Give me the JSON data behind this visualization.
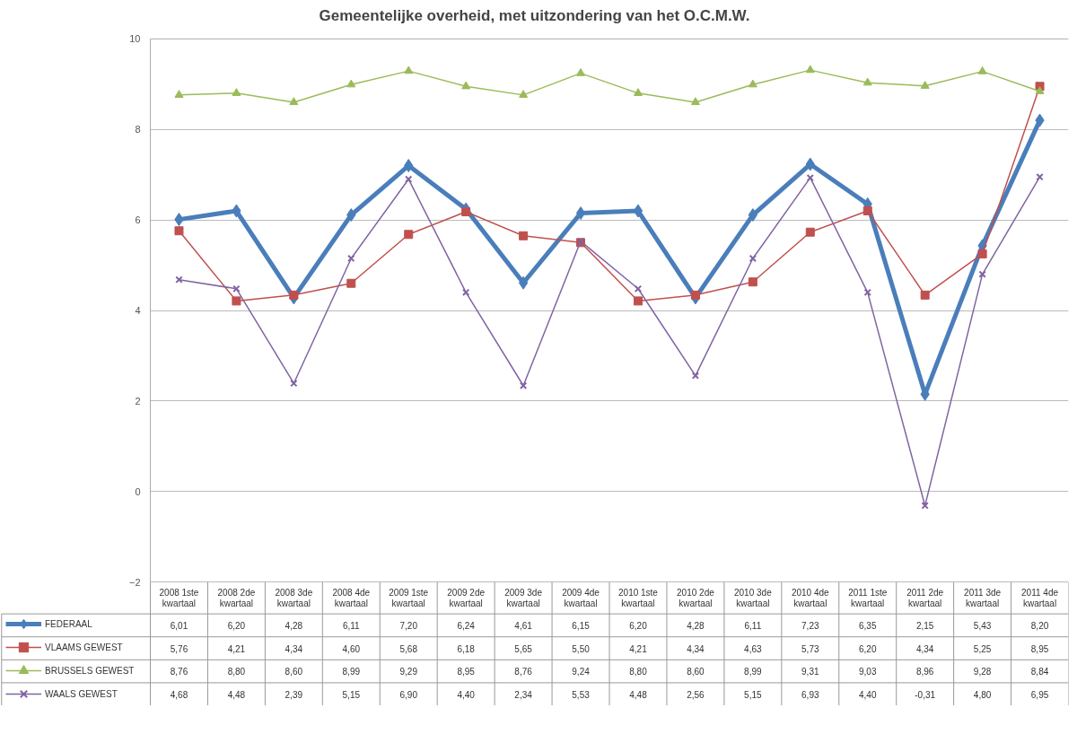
{
  "chart_data": {
    "type": "line",
    "title": "Gemeentelijke overheid, met uitzondering van het O.C.M.W.",
    "categories": [
      "2008 1ste kwartaal",
      "2008 2de kwartaal",
      "2008 3de kwartaal",
      "2008 4de kwartaal",
      "2009 1ste kwartaal",
      "2009 2de kwartaal",
      "2009 3de kwartaal",
      "2009 4de kwartaal",
      "2010 1ste kwartaal",
      "2010 2de kwartaal",
      "2010 3de kwartaal",
      "2010 4de kwartaal",
      "2011 1ste kwartaal",
      "2011 2de kwartaal",
      "2011 3de kwartaal",
      "2011 4de kwartaal"
    ],
    "series": [
      {
        "name": "FEDERAAL",
        "color": "#4a7ebb",
        "marker": "diamond",
        "values": [
          6.01,
          6.2,
          4.28,
          6.11,
          7.2,
          6.24,
          4.61,
          6.15,
          6.2,
          4.28,
          6.11,
          7.23,
          6.35,
          2.15,
          5.43,
          8.2
        ],
        "value_labels": [
          "6,01",
          "6,20",
          "4,28",
          "6,11",
          "7,20",
          "6,24",
          "4,61",
          "6,15",
          "6,20",
          "4,28",
          "6,11",
          "7,23",
          "6,35",
          "2,15",
          "5,43",
          "8,20"
        ]
      },
      {
        "name": "VLAAMS GEWEST",
        "color": "#c0504d",
        "marker": "square",
        "values": [
          5.76,
          4.21,
          4.34,
          4.6,
          5.68,
          6.18,
          5.65,
          5.5,
          4.21,
          4.34,
          4.63,
          5.73,
          6.2,
          4.34,
          5.25,
          8.95
        ],
        "value_labels": [
          "5,76",
          "4,21",
          "4,34",
          "4,60",
          "5,68",
          "6,18",
          "5,65",
          "5,50",
          "4,21",
          "4,34",
          "4,63",
          "5,73",
          "6,20",
          "4,34",
          "5,25",
          "8,95"
        ]
      },
      {
        "name": "BRUSSELS GEWEST",
        "color": "#9bbb59",
        "marker": "triangle",
        "values": [
          8.76,
          8.8,
          8.6,
          8.99,
          9.29,
          8.95,
          8.76,
          9.24,
          8.8,
          8.6,
          8.99,
          9.31,
          9.03,
          8.96,
          9.28,
          8.84
        ],
        "value_labels": [
          "8,76",
          "8,80",
          "8,60",
          "8,99",
          "9,29",
          "8,95",
          "8,76",
          "9,24",
          "8,80",
          "8,60",
          "8,99",
          "9,31",
          "9,03",
          "8,96",
          "9,28",
          "8,84"
        ]
      },
      {
        "name": "WAALS GEWEST",
        "color": "#8064a2",
        "marker": "cross",
        "values": [
          4.68,
          4.48,
          2.39,
          5.15,
          6.9,
          4.4,
          2.34,
          5.53,
          4.48,
          2.56,
          5.15,
          6.93,
          4.4,
          -0.31,
          4.8,
          6.95
        ],
        "value_labels": [
          "4,68",
          "4,48",
          "2,39",
          "5,15",
          "6,90",
          "4,40",
          "2,34",
          "5,53",
          "4,48",
          "2,56",
          "5,15",
          "6,93",
          "4,40",
          "-0,31",
          "4,80",
          "6,95"
        ]
      }
    ],
    "ylim": [
      -2,
      10
    ],
    "yticks": [
      -2,
      0,
      2,
      4,
      6,
      8,
      10
    ],
    "grid": "y",
    "legend": "bottom"
  }
}
